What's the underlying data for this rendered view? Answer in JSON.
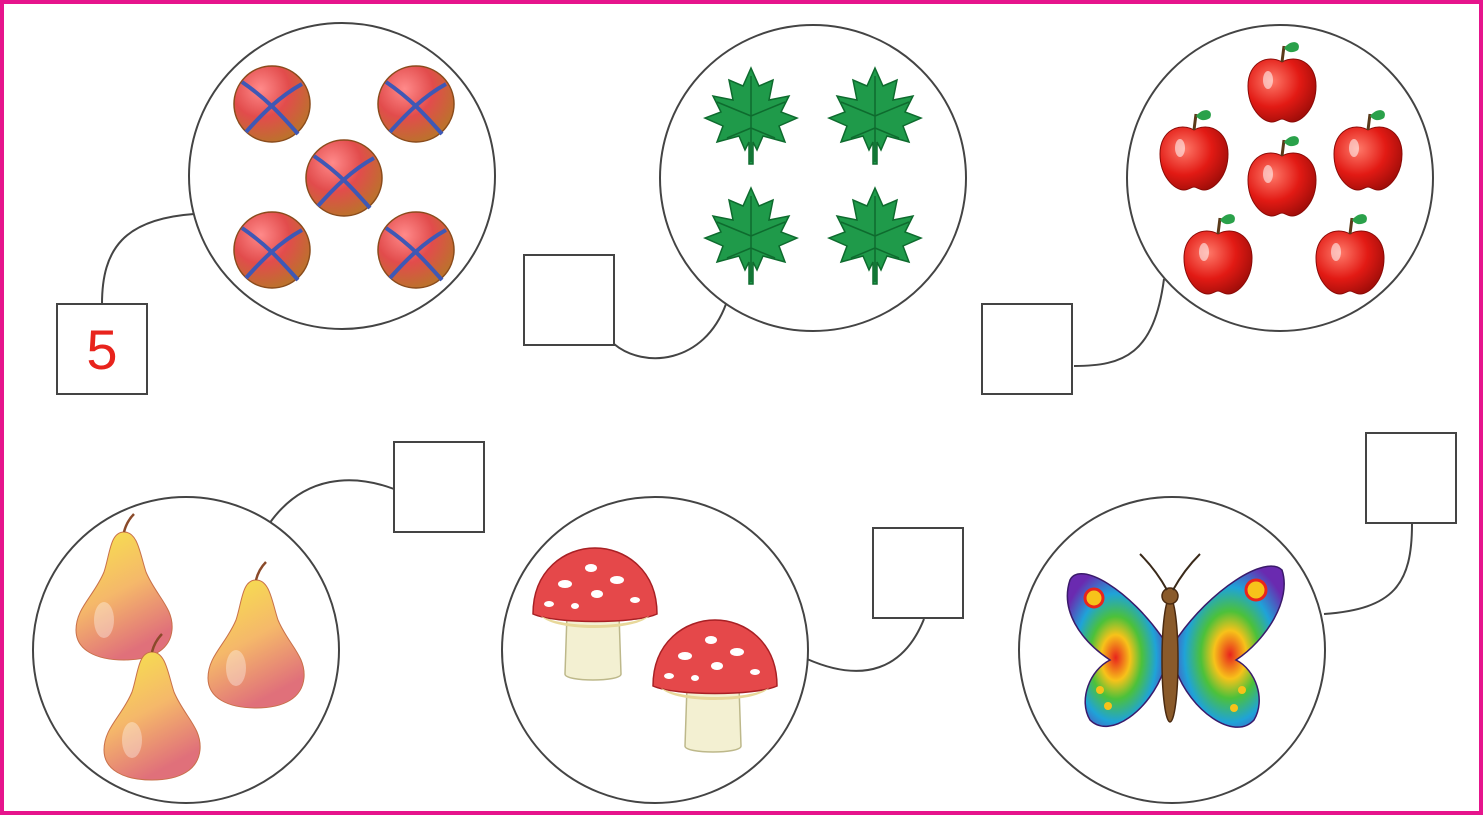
{
  "colors": {
    "frame": "#e6148c",
    "answer_text": "#e8231c",
    "outline": "#444444"
  },
  "items": [
    {
      "picture": "ball-icon",
      "count": 5,
      "answer": "5"
    },
    {
      "picture": "maple-leaf-icon",
      "count": 4,
      "answer": ""
    },
    {
      "picture": "apple-icon",
      "count": 6,
      "answer": ""
    },
    {
      "picture": "pear-icon",
      "count": 3,
      "answer": ""
    },
    {
      "picture": "mushroom-icon",
      "count": 2,
      "answer": ""
    },
    {
      "picture": "butterfly-icon",
      "count": 1,
      "answer": ""
    }
  ]
}
